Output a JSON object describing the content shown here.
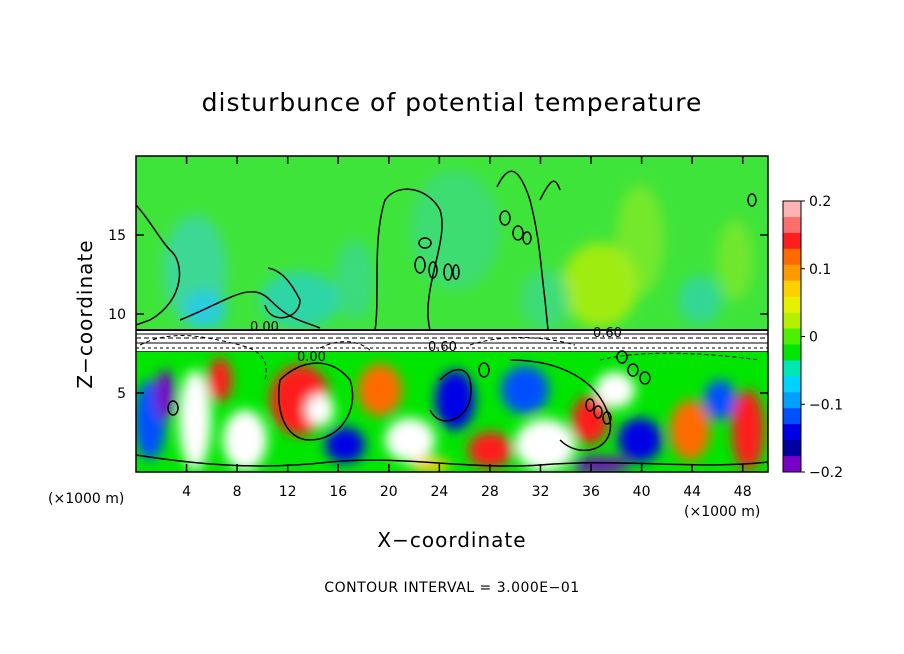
{
  "chart_data": {
    "type": "heatmap",
    "title": "disturbunce of potential temperature",
    "xlabel": "X−coordinate",
    "ylabel": "Z−coordinate",
    "x_unit_left": "(×1000 m)",
    "x_unit_right": "(×1000 m)",
    "xlim": [
      0,
      50
    ],
    "ylim": [
      0,
      20
    ],
    "x_ticks": [
      4,
      8,
      12,
      16,
      20,
      24,
      28,
      32,
      36,
      40,
      44,
      48
    ],
    "x_tick_labels": [
      "4",
      "8",
      "12",
      "16",
      "20",
      "24",
      "28",
      "32",
      "36",
      "40",
      "44",
      "48"
    ],
    "y_ticks": [
      5,
      10,
      15
    ],
    "y_tick_labels": [
      "5",
      "10",
      "15"
    ],
    "colorbar": {
      "range": [
        -0.2,
        0.2
      ],
      "ticks": [
        0.2,
        0.1,
        0,
        -0.1,
        -0.2
      ],
      "tick_labels": [
        "0.2",
        "0.1",
        "0",
        "−0.1",
        "−0.2"
      ],
      "colors": [
        "#ffb4b4",
        "#ff6e6e",
        "#ff1e1e",
        "#ff6a00",
        "#ff9a00",
        "#ffd000",
        "#e6f000",
        "#b4f000",
        "#4cf000",
        "#00e600",
        "#00e6b4",
        "#00d2ff",
        "#00a0ff",
        "#0050ff",
        "#0000e6",
        "#0000a0",
        "#7800c8"
      ]
    },
    "contour_labels": [
      "0.00",
      "0.00",
      "0.60",
      "0.60"
    ],
    "contour_interval_text": "CONTOUR INTERVAL = 3.000E−01"
  }
}
